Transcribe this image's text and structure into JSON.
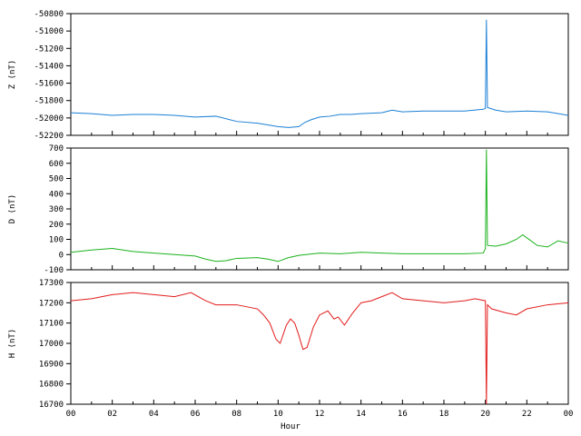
{
  "chart_data": [
    {
      "type": "line",
      "ylabel": "Z (nT)",
      "ylim": [
        -52200,
        -50800
      ],
      "yticks": [
        -50800,
        -51000,
        -51200,
        -51400,
        -51600,
        -51800,
        -52000,
        -52200
      ],
      "grid": false,
      "color": "#1a7fd4",
      "series": [
        {
          "x": [
            0,
            1,
            2,
            3,
            4,
            5,
            6,
            7,
            8,
            9,
            9.5,
            10,
            10.5,
            11,
            11.3,
            11.6,
            12,
            12.5,
            13,
            13.5,
            14,
            15,
            15.5,
            16,
            17,
            18,
            19,
            19.9,
            20,
            20.05,
            20.1,
            20.5,
            21,
            22,
            23,
            24
          ],
          "y": [
            -51940,
            -51950,
            -51970,
            -51960,
            -51960,
            -51970,
            -51990,
            -51980,
            -52040,
            -52060,
            -52080,
            -52100,
            -52110,
            -52100,
            -52050,
            -52020,
            -51990,
            -51980,
            -51960,
            -51960,
            -51950,
            -51940,
            -51910,
            -51930,
            -51920,
            -51920,
            -51920,
            -51900,
            -51890,
            -50870,
            -51880,
            -51910,
            -51930,
            -51920,
            -51930,
            -51970
          ]
        }
      ]
    },
    {
      "type": "line",
      "ylabel": "D (nT)",
      "ylim": [
        -100,
        700
      ],
      "yticks": [
        700,
        600,
        500,
        400,
        300,
        200,
        100,
        0,
        -100
      ],
      "grid": false,
      "color": "#1bb21b",
      "series": [
        {
          "x": [
            0,
            1,
            2,
            3,
            4,
            5,
            6,
            6.5,
            7,
            7.5,
            8,
            9,
            9.5,
            10,
            10.5,
            11,
            12,
            13,
            14,
            15,
            16,
            17,
            18,
            19,
            19.9,
            20,
            20.05,
            20.1,
            20.5,
            21,
            21.5,
            21.8,
            22,
            22.5,
            23,
            23.5,
            24
          ],
          "y": [
            15,
            30,
            40,
            20,
            10,
            0,
            -10,
            -30,
            -45,
            -40,
            -25,
            -20,
            -30,
            -45,
            -20,
            -5,
            10,
            5,
            15,
            10,
            5,
            5,
            5,
            5,
            10,
            40,
            690,
            60,
            55,
            70,
            100,
            130,
            110,
            60,
            50,
            90,
            75
          ]
        }
      ]
    },
    {
      "type": "line",
      "ylabel": "H (nT)",
      "ylim": [
        16700,
        17300
      ],
      "yticks": [
        17300,
        17200,
        17100,
        17000,
        16900,
        16800,
        16700
      ],
      "grid": false,
      "color": "#e31b1b",
      "series": [
        {
          "x": [
            0,
            1,
            2,
            3,
            4,
            5,
            5.8,
            6.5,
            7,
            8,
            9,
            9.3,
            9.6,
            9.9,
            10.1,
            10.4,
            10.6,
            10.8,
            11,
            11.2,
            11.4,
            11.7,
            12,
            12.4,
            12.7,
            12.9,
            13.2,
            13.6,
            14,
            14.5,
            15,
            15.5,
            16,
            17,
            18,
            19,
            19.5,
            20,
            20.05,
            20.1,
            20.3,
            21,
            21.5,
            22,
            23,
            24
          ],
          "y": [
            17210,
            17220,
            17240,
            17250,
            17240,
            17230,
            17250,
            17210,
            17190,
            17190,
            17170,
            17140,
            17100,
            17020,
            17000,
            17090,
            17120,
            17100,
            17040,
            16970,
            16980,
            17080,
            17140,
            17160,
            17120,
            17130,
            17090,
            17150,
            17200,
            17210,
            17230,
            17250,
            17220,
            17210,
            17200,
            17210,
            17220,
            17210,
            16700,
            17190,
            17170,
            17150,
            17140,
            17170,
            17190,
            17200
          ]
        }
      ]
    }
  ],
  "x_axis": {
    "label": "Hour",
    "range": [
      0,
      24
    ],
    "tick_labels": [
      "00",
      "02",
      "04",
      "06",
      "08",
      "10",
      "12",
      "14",
      "16",
      "18",
      "20",
      "22",
      "00"
    ]
  }
}
